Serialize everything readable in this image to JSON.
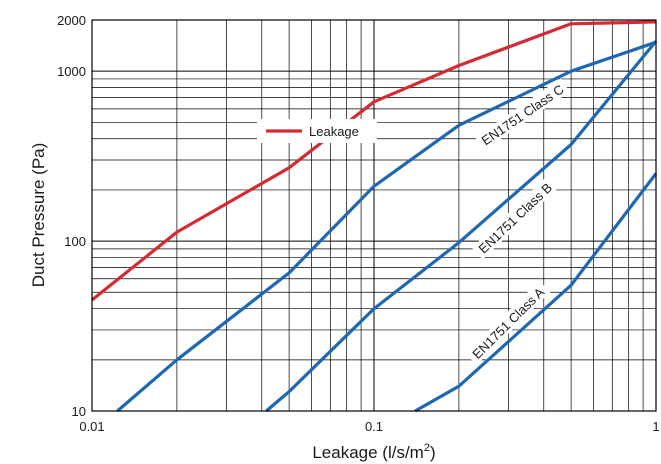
{
  "chart_data": {
    "type": "line",
    "xlabel": "Leakage (l/s/m",
    "xlabel_superscript": "2",
    "xlabel_suffix": ")",
    "ylabel": "Duct Pressure (Pa)",
    "x_scale": "log",
    "y_scale": "log",
    "xlim": [
      0.01,
      1
    ],
    "ylim": [
      10,
      2000
    ],
    "x_ticks": [
      {
        "value": 0.01,
        "label": "0.01"
      },
      {
        "value": 0.1,
        "label": "0.1"
      },
      {
        "value": 1,
        "label": "1"
      }
    ],
    "y_ticks": [
      {
        "value": 10,
        "label": "10"
      },
      {
        "value": 100,
        "label": "100"
      },
      {
        "value": 1000,
        "label": "1000"
      },
      {
        "value": 2000,
        "label": "2000"
      }
    ],
    "grid": true,
    "legend_position": "upper-middle",
    "series": [
      {
        "name": "Leakage",
        "color": "#d42b33",
        "in_legend": true,
        "x": [
          0.01,
          0.02,
          0.05,
          0.1,
          0.2,
          0.5,
          1
        ],
        "y": [
          45,
          113,
          270,
          660,
          1080,
          1900,
          1950
        ]
      },
      {
        "name": "EN1751 Class C",
        "color": "#1e68b3",
        "in_legend": false,
        "x": [
          0.0123,
          0.02,
          0.05,
          0.1,
          0.2,
          0.5,
          1
        ],
        "y": [
          10,
          20,
          65,
          210,
          480,
          1000,
          1480
        ]
      },
      {
        "name": "EN1751 Class B",
        "color": "#1e68b3",
        "in_legend": false,
        "x": [
          0.0415,
          0.05,
          0.1,
          0.2,
          0.5,
          1
        ],
        "y": [
          10,
          13,
          40,
          98,
          370,
          1500
        ]
      },
      {
        "name": "EN1751 Class A",
        "color": "#1e68b3",
        "in_legend": false,
        "x": [
          0.14,
          0.2,
          0.5,
          1
        ],
        "y": [
          10,
          14,
          55,
          250
        ]
      }
    ]
  }
}
